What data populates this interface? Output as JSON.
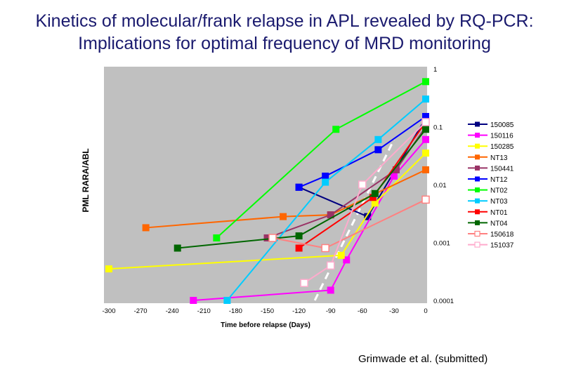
{
  "header": {
    "title_line1": "Kinetics of molecular/frank relapse in APL revealed by RQ-PCR:",
    "title_line2": "Implications for optimal frequency of MRD monitoring"
  },
  "footer": {
    "citation": "Grimwade et al. (submitted)"
  },
  "chart_data": {
    "type": "line",
    "title": "",
    "xlabel": "Time before relapse (Days)",
    "ylabel": "PML RARA/ABL",
    "x_ticks": [
      -300,
      -270,
      -240,
      -210,
      -180,
      -150,
      -120,
      -90,
      -60,
      -30,
      0
    ],
    "x_tick_labels": [
      "-300",
      "-270",
      "-240",
      "-210",
      "-180",
      "-150",
      "-120",
      "-90",
      "-60",
      "-30",
      "0"
    ],
    "xlim": [
      -300,
      0
    ],
    "y_scale": "log",
    "y_ticks": [
      1,
      0.1,
      0.01,
      0.001,
      0.0001
    ],
    "y_tick_labels": [
      "1",
      "0.1",
      "0.01",
      "0.001",
      "0.0001"
    ],
    "ylim": [
      0.0001,
      1
    ],
    "plot_background": "#c0c0c0",
    "legend_position": "right",
    "series": [
      {
        "name": "150085",
        "color": "#000080",
        "marker": "filled",
        "points": [
          [
            -120,
            0.009
          ],
          [
            -55,
            0.0028
          ],
          [
            0,
            0.14
          ]
        ]
      },
      {
        "name": "150116",
        "color": "#ff00ff",
        "marker": "filled",
        "points": [
          [
            -220,
            0.0001
          ],
          [
            -90,
            0.00015
          ],
          [
            -75,
            0.0005
          ],
          [
            -30,
            0.014
          ],
          [
            0,
            0.06
          ]
        ]
      },
      {
        "name": "150285",
        "color": "#ffff00",
        "marker": "filled",
        "points": [
          [
            -300,
            0.00035
          ],
          [
            -80,
            0.0006
          ],
          [
            -48,
            0.0048
          ],
          [
            0,
            0.035
          ]
        ]
      },
      {
        "name": "NT13",
        "color": "#ff6600",
        "marker": "filled",
        "points": [
          [
            -265,
            0.0018
          ],
          [
            -135,
            0.0028
          ],
          [
            -90,
            0.003
          ],
          [
            0,
            0.018
          ]
        ]
      },
      {
        "name": "150441",
        "color": "#993366",
        "marker": "filled",
        "points": [
          [
            -150,
            0.0012
          ],
          [
            -90,
            0.003
          ],
          [
            -28,
            0.018
          ],
          [
            0,
            0.1
          ]
        ]
      },
      {
        "name": "NT12",
        "color": "#0000ff",
        "marker": "filled",
        "points": [
          [
            -120,
            0.009
          ],
          [
            -95,
            0.014
          ],
          [
            -45,
            0.04
          ],
          [
            0,
            0.15
          ]
        ]
      },
      {
        "name": "NT02",
        "color": "#00ff00",
        "marker": "filled",
        "points": [
          [
            -198,
            0.0012
          ],
          [
            -85,
            0.09
          ],
          [
            0,
            0.6
          ]
        ]
      },
      {
        "name": "NT03",
        "color": "#00ccff",
        "marker": "filled",
        "points": [
          [
            -188,
            0.0001
          ],
          [
            -95,
            0.011
          ],
          [
            -45,
            0.06
          ],
          [
            0,
            0.3
          ]
        ]
      },
      {
        "name": "NT01",
        "color": "#ff0000",
        "marker": "filled",
        "points": [
          [
            -120,
            0.0008
          ],
          [
            -50,
            0.006
          ],
          [
            0,
            0.12
          ]
        ]
      },
      {
        "name": "NT04",
        "color": "#006600",
        "marker": "filled",
        "points": [
          [
            -235,
            0.0008
          ],
          [
            -120,
            0.0013
          ],
          [
            -48,
            0.007
          ],
          [
            0,
            0.09
          ]
        ]
      },
      {
        "name": "150618",
        "color": "#ff8080",
        "marker": "open",
        "points": [
          [
            -145,
            0.0012
          ],
          [
            -95,
            0.0008
          ],
          [
            0,
            0.0055
          ]
        ]
      },
      {
        "name": "151037",
        "color": "#ffaacc",
        "marker": "open",
        "points": [
          [
            -115,
            0.0002
          ],
          [
            -90,
            0.0004
          ],
          [
            -60,
            0.01
          ],
          [
            0,
            0.12
          ]
        ]
      }
    ],
    "trend_line": {
      "color": "#ffffff",
      "style": "dashed",
      "points": [
        [
          -105,
          0.0001
        ],
        [
          -30,
          0.06
        ]
      ]
    }
  }
}
